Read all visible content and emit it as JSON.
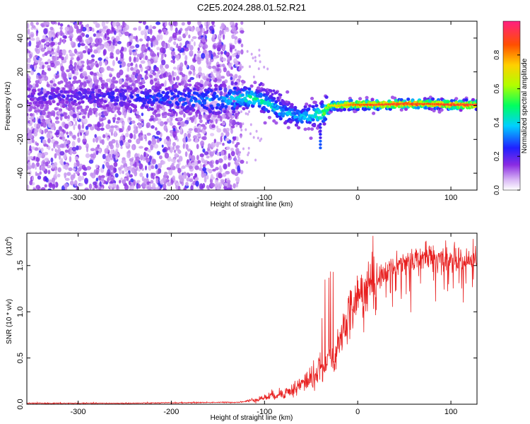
{
  "title": "C2E5.2024.288.01.52.R21",
  "chart_data": [
    {
      "type": "heatmap",
      "xlabel": "Height of straight line (km)",
      "ylabel": "Frequency (Hz)",
      "xlim": [
        -355,
        128
      ],
      "ylim": [
        -50,
        50
      ],
      "xticks": [
        -300,
        -200,
        -100,
        0,
        100
      ],
      "xtick_labels": [
        "-300",
        "-200",
        "-100",
        "0",
        "100"
      ],
      "yticks": [
        -40,
        -20,
        0,
        20,
        40
      ],
      "ytick_labels": [
        "-40",
        "-20",
        "0",
        "20",
        "40"
      ],
      "colorbar": {
        "label": "Normalized spectral amplitude",
        "range": [
          0,
          1
        ],
        "ticks": [
          0.0,
          0.2,
          0.4,
          0.6,
          0.8
        ],
        "tick_labels": [
          "0.0",
          "0.2",
          "0.4",
          "0.6",
          "0.8"
        ]
      },
      "ridge": {
        "x": [
          -355,
          -300,
          -250,
          -200,
          -150,
          -130,
          -120,
          -110,
          -100,
          -90,
          -80,
          -70,
          -60,
          -50,
          -45,
          -40,
          -35,
          -30,
          -20,
          -10,
          0,
          20,
          50,
          80,
          100,
          128
        ],
        "freq": [
          5,
          6,
          5,
          4,
          3,
          4,
          5,
          4,
          2,
          -1,
          -4,
          -5,
          -7,
          -6,
          -5,
          -6,
          -3,
          0,
          0,
          0.5,
          0.5,
          0.5,
          1,
          1,
          0.5,
          0.5
        ],
        "amplitude": [
          0.2,
          0.22,
          0.25,
          0.3,
          0.35,
          0.42,
          0.5,
          0.48,
          0.45,
          0.42,
          0.4,
          0.38,
          0.4,
          0.45,
          0.5,
          0.55,
          0.6,
          0.7,
          0.75,
          0.8,
          0.85,
          0.9,
          0.9,
          0.88,
          0.9,
          0.9
        ]
      },
      "noise_region": [
        -355,
        -130
      ]
    },
    {
      "type": "line",
      "xlabel": "Height of straight line (km)",
      "ylabel": "SNR (10 * v/v)",
      "y_multiplier_label": "(x10",
      "y_multiplier_exp": "4",
      "xlim": [
        -355,
        128
      ],
      "ylim": [
        0,
        1.85
      ],
      "xticks": [
        -300,
        -200,
        -100,
        0,
        100
      ],
      "xtick_labels": [
        "-300",
        "-200",
        "-100",
        "0",
        "100"
      ],
      "yticks": [
        0,
        0.5,
        1.0,
        1.5
      ],
      "ytick_labels": [
        "0.0",
        "0.5",
        "1.0",
        "1.5"
      ],
      "series": [
        {
          "color": "#e82020",
          "x": [
            -355,
            -300,
            -250,
            -200,
            -150,
            -130,
            -120,
            -110,
            -100,
            -90,
            -80,
            -70,
            -60,
            -50,
            -45,
            -40,
            -35,
            -30,
            -28,
            -25,
            -20,
            -15,
            -10,
            -5,
            0,
            10,
            20,
            30,
            40,
            50,
            60,
            70,
            80,
            90,
            100,
            110,
            120,
            128
          ],
          "y": [
            0.01,
            0.01,
            0.01,
            0.015,
            0.02,
            0.02,
            0.03,
            0.05,
            0.07,
            0.1,
            0.12,
            0.15,
            0.22,
            0.28,
            0.32,
            0.36,
            0.4,
            0.6,
            0.5,
            0.45,
            0.65,
            0.82,
            0.95,
            1.05,
            1.15,
            1.25,
            1.35,
            1.42,
            1.5,
            1.55,
            1.58,
            1.6,
            1.6,
            1.58,
            1.57,
            1.56,
            1.55,
            1.55
          ]
        }
      ]
    }
  ]
}
